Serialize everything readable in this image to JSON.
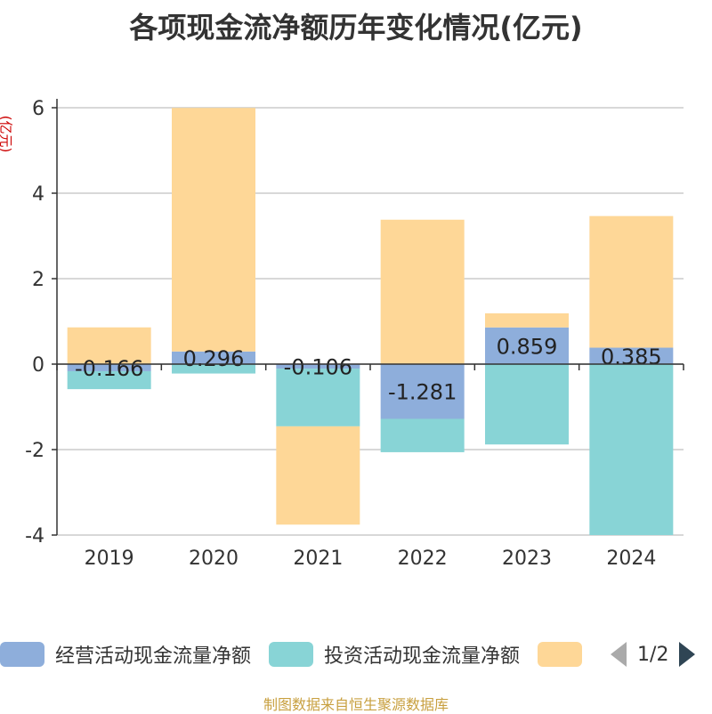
{
  "chart_data": {
    "type": "bar",
    "stacked": true,
    "title": "各项现金流净额历年变化情况(亿元)",
    "ylabel": "(亿元)",
    "xlabel": "",
    "categories": [
      "2019",
      "2020",
      "2021",
      "2022",
      "2023",
      "2024"
    ],
    "ylim": [
      -4,
      6
    ],
    "yticks": [
      6,
      4,
      2,
      0,
      -2,
      -4
    ],
    "grid": true,
    "series": [
      {
        "name": "经营活动现金流量净额",
        "color": "#8eaedb",
        "values": [
          -0.166,
          0.296,
          -0.106,
          -1.281,
          0.859,
          0.385
        ],
        "show_labels": true
      },
      {
        "name": "投资活动现金流量净额",
        "color": "#88d4d6",
        "values": [
          -0.42,
          -0.22,
          -1.35,
          -0.78,
          -1.88,
          -4.0
        ]
      },
      {
        "name": "",
        "color": "#fed797",
        "values": [
          0.86,
          5.7,
          -2.3,
          3.38,
          0.33,
          3.08
        ]
      }
    ],
    "legend_position": "bottom"
  },
  "legend": {
    "items": [
      {
        "label": "经营活动现金流量净额",
        "color": "#8eaedb"
      },
      {
        "label": "投资活动现金流量净额",
        "color": "#88d4d6"
      },
      {
        "label": "",
        "color": "#fed797"
      }
    ],
    "page": "1/2"
  },
  "source": "制图数据来自恒生聚源数据库"
}
